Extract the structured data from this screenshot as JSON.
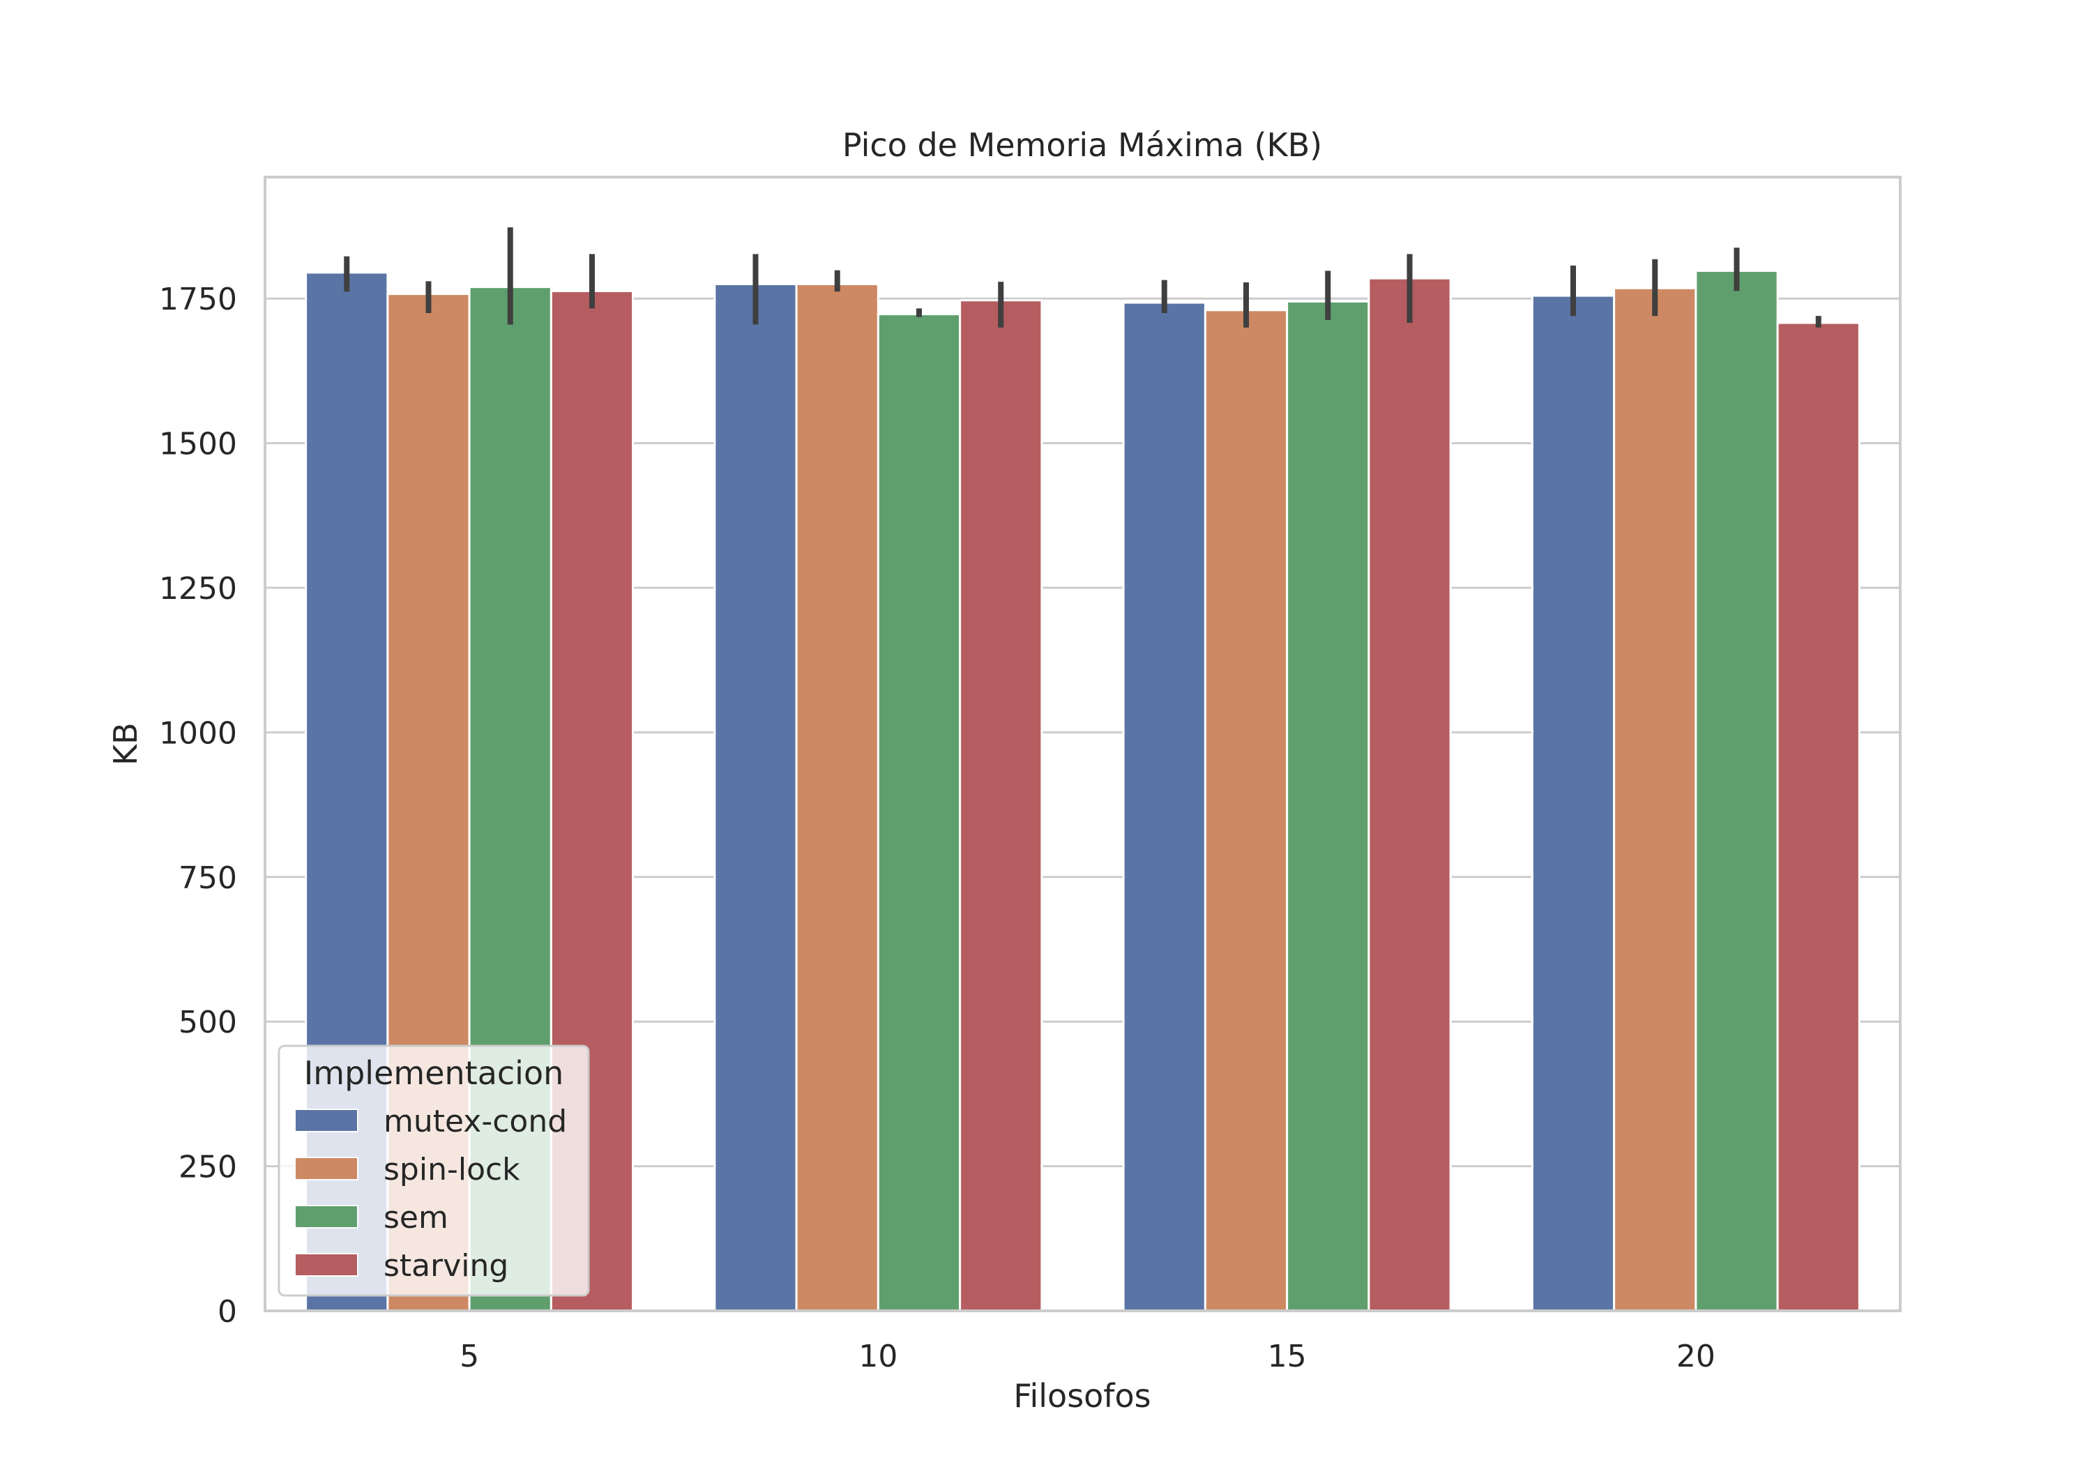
{
  "chart_data": {
    "type": "bar",
    "title": "Pico de Memoria Máxima (KB)",
    "xlabel": "Filosofos",
    "ylabel": "KB",
    "categories": [
      "5",
      "10",
      "15",
      "20"
    ],
    "ylim": [
      0,
      1960
    ],
    "yticks": [
      0,
      250,
      500,
      750,
      1000,
      1250,
      1500,
      1750
    ],
    "grid": true,
    "legend": {
      "title": "Implementacion",
      "placement": "lower-left"
    },
    "series": [
      {
        "name": "mutex-cond",
        "color": "#5a74a5",
        "values": [
          1795,
          1775,
          1743,
          1755
        ],
        "err": [
          [
            1762,
            1823
          ],
          [
            1705,
            1827
          ],
          [
            1725,
            1782
          ],
          [
            1720,
            1807
          ]
        ]
      },
      {
        "name": "spin-lock",
        "color": "#cd8963",
        "values": [
          1758,
          1775,
          1730,
          1768
        ],
        "err": [
          [
            1725,
            1780
          ],
          [
            1762,
            1799
          ],
          [
            1700,
            1778
          ],
          [
            1720,
            1818
          ]
        ]
      },
      {
        "name": "sem",
        "color": "#5f9f6e",
        "values": [
          1770,
          1723,
          1745,
          1798
        ],
        "err": [
          [
            1705,
            1873
          ],
          [
            1718,
            1733
          ],
          [
            1713,
            1798
          ],
          [
            1763,
            1838
          ]
        ]
      },
      {
        "name": "starving",
        "color": "#b55d60",
        "values": [
          1763,
          1747,
          1785,
          1708
        ],
        "err": [
          [
            1733,
            1827
          ],
          [
            1700,
            1779
          ],
          [
            1708,
            1827
          ],
          [
            1700,
            1720
          ]
        ]
      }
    ]
  }
}
